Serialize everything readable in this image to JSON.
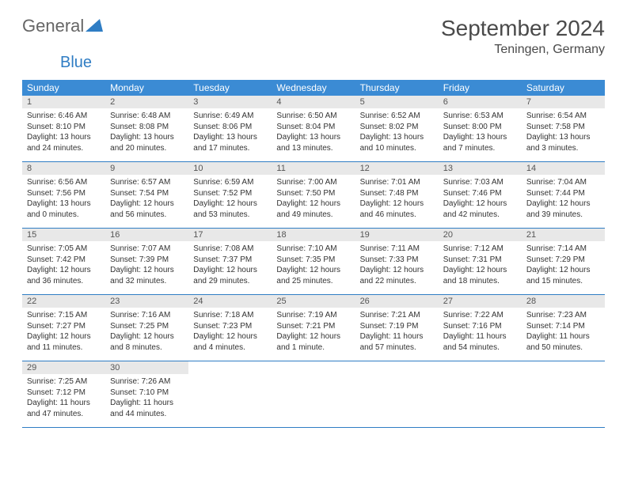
{
  "brand": {
    "name1": "General",
    "name2": "Blue"
  },
  "title": "September 2024",
  "location": "Teningen, Germany",
  "colors": {
    "header_bg": "#3b8bd4",
    "header_text": "#ffffff",
    "daynum_bg": "#e8e8e8",
    "border": "#2f7dc4",
    "text": "#333333",
    "brand_gray": "#666666",
    "brand_blue": "#2f7dc4",
    "page_bg": "#ffffff"
  },
  "dayNames": [
    "Sunday",
    "Monday",
    "Tuesday",
    "Wednesday",
    "Thursday",
    "Friday",
    "Saturday"
  ],
  "weeks": [
    [
      {
        "n": "1",
        "sr": "6:46 AM",
        "ss": "8:10 PM",
        "dl": "13 hours and 24 minutes."
      },
      {
        "n": "2",
        "sr": "6:48 AM",
        "ss": "8:08 PM",
        "dl": "13 hours and 20 minutes."
      },
      {
        "n": "3",
        "sr": "6:49 AM",
        "ss": "8:06 PM",
        "dl": "13 hours and 17 minutes."
      },
      {
        "n": "4",
        "sr": "6:50 AM",
        "ss": "8:04 PM",
        "dl": "13 hours and 13 minutes."
      },
      {
        "n": "5",
        "sr": "6:52 AM",
        "ss": "8:02 PM",
        "dl": "13 hours and 10 minutes."
      },
      {
        "n": "6",
        "sr": "6:53 AM",
        "ss": "8:00 PM",
        "dl": "13 hours and 7 minutes."
      },
      {
        "n": "7",
        "sr": "6:54 AM",
        "ss": "7:58 PM",
        "dl": "13 hours and 3 minutes."
      }
    ],
    [
      {
        "n": "8",
        "sr": "6:56 AM",
        "ss": "7:56 PM",
        "dl": "13 hours and 0 minutes."
      },
      {
        "n": "9",
        "sr": "6:57 AM",
        "ss": "7:54 PM",
        "dl": "12 hours and 56 minutes."
      },
      {
        "n": "10",
        "sr": "6:59 AM",
        "ss": "7:52 PM",
        "dl": "12 hours and 53 minutes."
      },
      {
        "n": "11",
        "sr": "7:00 AM",
        "ss": "7:50 PM",
        "dl": "12 hours and 49 minutes."
      },
      {
        "n": "12",
        "sr": "7:01 AM",
        "ss": "7:48 PM",
        "dl": "12 hours and 46 minutes."
      },
      {
        "n": "13",
        "sr": "7:03 AM",
        "ss": "7:46 PM",
        "dl": "12 hours and 42 minutes."
      },
      {
        "n": "14",
        "sr": "7:04 AM",
        "ss": "7:44 PM",
        "dl": "12 hours and 39 minutes."
      }
    ],
    [
      {
        "n": "15",
        "sr": "7:05 AM",
        "ss": "7:42 PM",
        "dl": "12 hours and 36 minutes."
      },
      {
        "n": "16",
        "sr": "7:07 AM",
        "ss": "7:39 PM",
        "dl": "12 hours and 32 minutes."
      },
      {
        "n": "17",
        "sr": "7:08 AM",
        "ss": "7:37 PM",
        "dl": "12 hours and 29 minutes."
      },
      {
        "n": "18",
        "sr": "7:10 AM",
        "ss": "7:35 PM",
        "dl": "12 hours and 25 minutes."
      },
      {
        "n": "19",
        "sr": "7:11 AM",
        "ss": "7:33 PM",
        "dl": "12 hours and 22 minutes."
      },
      {
        "n": "20",
        "sr": "7:12 AM",
        "ss": "7:31 PM",
        "dl": "12 hours and 18 minutes."
      },
      {
        "n": "21",
        "sr": "7:14 AM",
        "ss": "7:29 PM",
        "dl": "12 hours and 15 minutes."
      }
    ],
    [
      {
        "n": "22",
        "sr": "7:15 AM",
        "ss": "7:27 PM",
        "dl": "12 hours and 11 minutes."
      },
      {
        "n": "23",
        "sr": "7:16 AM",
        "ss": "7:25 PM",
        "dl": "12 hours and 8 minutes."
      },
      {
        "n": "24",
        "sr": "7:18 AM",
        "ss": "7:23 PM",
        "dl": "12 hours and 4 minutes."
      },
      {
        "n": "25",
        "sr": "7:19 AM",
        "ss": "7:21 PM",
        "dl": "12 hours and 1 minute."
      },
      {
        "n": "26",
        "sr": "7:21 AM",
        "ss": "7:19 PM",
        "dl": "11 hours and 57 minutes."
      },
      {
        "n": "27",
        "sr": "7:22 AM",
        "ss": "7:16 PM",
        "dl": "11 hours and 54 minutes."
      },
      {
        "n": "28",
        "sr": "7:23 AM",
        "ss": "7:14 PM",
        "dl": "11 hours and 50 minutes."
      }
    ],
    [
      {
        "n": "29",
        "sr": "7:25 AM",
        "ss": "7:12 PM",
        "dl": "11 hours and 47 minutes."
      },
      {
        "n": "30",
        "sr": "7:26 AM",
        "ss": "7:10 PM",
        "dl": "11 hours and 44 minutes."
      },
      null,
      null,
      null,
      null,
      null
    ]
  ],
  "labels": {
    "sunrise": "Sunrise:",
    "sunset": "Sunset:",
    "daylight": "Daylight:"
  }
}
